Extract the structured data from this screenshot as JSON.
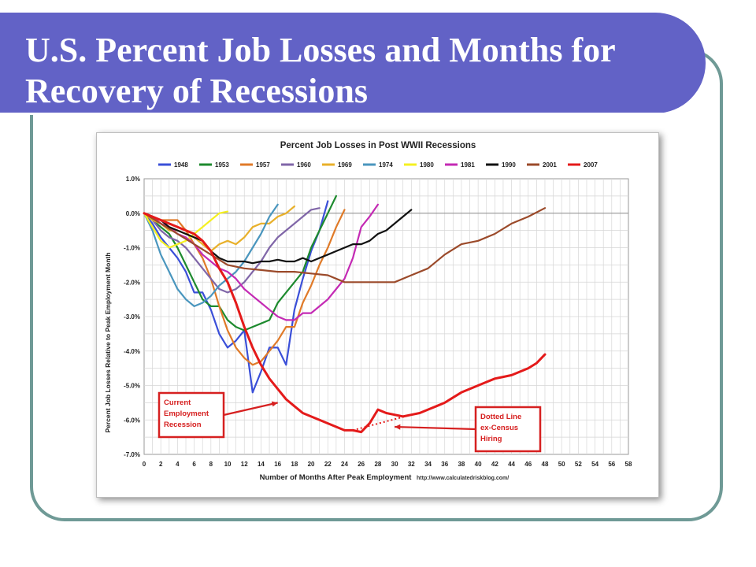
{
  "slide": {
    "title": "U.S. Percent Job Losses and Months for Recovery of Recessions"
  },
  "chart_data": {
    "type": "line",
    "title": "Percent Job Losses in Post WWII Recessions",
    "xlabel": "Number of Months After Peak Employment",
    "ylabel": "Percent Job Losses Relative to Peak Employment Month",
    "source": "http://www.calculatedriskblog.com/",
    "xlim": [
      0,
      58
    ],
    "ylim": [
      -7.0,
      1.0
    ],
    "x_ticks": [
      "0",
      "2",
      "4",
      "6",
      "8",
      "10",
      "12",
      "14",
      "16",
      "18",
      "20",
      "22",
      "24",
      "26",
      "28",
      "30",
      "32",
      "34",
      "36",
      "38",
      "40",
      "42",
      "44",
      "46",
      "48",
      "50",
      "52",
      "54",
      "56",
      "58"
    ],
    "y_ticks": [
      "1.0%",
      "0.0%",
      "-1.0%",
      "-2.0%",
      "-3.0%",
      "-4.0%",
      "-5.0%",
      "-6.0%",
      "-7.0%"
    ],
    "grid": true,
    "legend_position": "top",
    "series": [
      {
        "name": "1948",
        "color": "#3a4fd8",
        "x": [
          0,
          1,
          2,
          3,
          4,
          5,
          6,
          7,
          8,
          9,
          10,
          11,
          12,
          13,
          14,
          15,
          16,
          17,
          18,
          19,
          20,
          21,
          22
        ],
        "values": [
          0,
          -0.3,
          -0.7,
          -1.0,
          -1.3,
          -1.7,
          -2.3,
          -2.3,
          -2.8,
          -3.5,
          -3.9,
          -3.7,
          -3.4,
          -5.2,
          -4.6,
          -3.9,
          -3.9,
          -4.4,
          -2.8,
          -1.9,
          -1.1,
          -0.5,
          0.35
        ]
      },
      {
        "name": "1953",
        "color": "#1d8a2e",
        "x": [
          0,
          1,
          2,
          3,
          4,
          5,
          6,
          7,
          8,
          9,
          10,
          11,
          12,
          13,
          14,
          15,
          16,
          17,
          18,
          19,
          20,
          21,
          22,
          23
        ],
        "values": [
          0,
          -0.2,
          -0.4,
          -0.6,
          -1.0,
          -1.5,
          -2.0,
          -2.5,
          -2.7,
          -2.7,
          -3.1,
          -3.3,
          -3.4,
          -3.3,
          -3.2,
          -3.1,
          -2.6,
          -2.3,
          -2.0,
          -1.7,
          -1.0,
          -0.5,
          0.0,
          0.5
        ]
      },
      {
        "name": "1957",
        "color": "#e07a28",
        "x": [
          0,
          1,
          2,
          3,
          4,
          5,
          6,
          7,
          8,
          9,
          10,
          11,
          12,
          13,
          14,
          15,
          16,
          17,
          18,
          19,
          20,
          21,
          22,
          23,
          24
        ],
        "values": [
          0,
          -0.1,
          -0.2,
          -0.2,
          -0.2,
          -0.5,
          -0.9,
          -1.3,
          -1.9,
          -2.7,
          -3.4,
          -3.9,
          -4.2,
          -4.4,
          -4.3,
          -4.0,
          -3.7,
          -3.3,
          -3.3,
          -2.6,
          -2.1,
          -1.5,
          -1.0,
          -0.4,
          0.1
        ]
      },
      {
        "name": "1960",
        "color": "#8066a8",
        "x": [
          0,
          1,
          2,
          3,
          4,
          5,
          6,
          7,
          8,
          9,
          10,
          11,
          12,
          13,
          14,
          15,
          16,
          17,
          18,
          19,
          20,
          21
        ],
        "values": [
          0,
          -0.2,
          -0.5,
          -0.7,
          -0.8,
          -1.0,
          -1.3,
          -1.6,
          -1.9,
          -2.2,
          -2.3,
          -2.2,
          -2.0,
          -1.7,
          -1.4,
          -1.0,
          -0.7,
          -0.5,
          -0.3,
          -0.1,
          0.1,
          0.15
        ]
      },
      {
        "name": "1969",
        "color": "#e8b02a",
        "x": [
          0,
          1,
          2,
          3,
          4,
          5,
          6,
          7,
          8,
          9,
          10,
          11,
          12,
          13,
          14,
          15,
          16,
          17,
          18
        ],
        "values": [
          0,
          -0.2,
          -0.3,
          -0.5,
          -0.5,
          -0.6,
          -0.7,
          -0.9,
          -1.1,
          -0.9,
          -0.8,
          -0.9,
          -0.7,
          -0.4,
          -0.3,
          -0.3,
          -0.1,
          0.0,
          0.2
        ]
      },
      {
        "name": "1974",
        "color": "#4a96be",
        "x": [
          0,
          1,
          2,
          3,
          4,
          5,
          6,
          7,
          8,
          9,
          10,
          11,
          12,
          13,
          14,
          15,
          16
        ],
        "values": [
          0,
          -0.5,
          -1.2,
          -1.7,
          -2.2,
          -2.5,
          -2.7,
          -2.6,
          -2.4,
          -2.1,
          -1.9,
          -1.7,
          -1.4,
          -1.0,
          -0.6,
          -0.1,
          0.25
        ]
      },
      {
        "name": "1980",
        "color": "#f5f020",
        "x": [
          0,
          1,
          2,
          3,
          4,
          5,
          6,
          7,
          8,
          9,
          10
        ],
        "values": [
          0,
          -0.4,
          -0.8,
          -1.0,
          -0.9,
          -0.8,
          -0.6,
          -0.4,
          -0.2,
          0.0,
          0.05
        ]
      },
      {
        "name": "1981",
        "color": "#c42ab4",
        "x": [
          0,
          1,
          2,
          3,
          4,
          5,
          6,
          7,
          8,
          9,
          10,
          11,
          12,
          13,
          14,
          15,
          16,
          17,
          18,
          19,
          20,
          21,
          22,
          23,
          24,
          25,
          26,
          27,
          28
        ],
        "values": [
          0,
          -0.1,
          -0.3,
          -0.4,
          -0.6,
          -0.7,
          -0.9,
          -1.2,
          -1.4,
          -1.6,
          -1.7,
          -1.9,
          -2.2,
          -2.4,
          -2.6,
          -2.8,
          -3.0,
          -3.1,
          -3.1,
          -2.9,
          -2.9,
          -2.7,
          -2.5,
          -2.2,
          -1.9,
          -1.3,
          -0.4,
          -0.1,
          0.25
        ]
      },
      {
        "name": "1990",
        "color": "#111111",
        "x": [
          0,
          1,
          2,
          3,
          4,
          5,
          6,
          7,
          8,
          9,
          10,
          11,
          12,
          13,
          14,
          15,
          16,
          17,
          18,
          19,
          20,
          21,
          22,
          23,
          24,
          25,
          26,
          27,
          28,
          29,
          30,
          31,
          32
        ],
        "values": [
          0,
          -0.1,
          -0.2,
          -0.4,
          -0.5,
          -0.6,
          -0.7,
          -0.8,
          -1.1,
          -1.3,
          -1.4,
          -1.4,
          -1.4,
          -1.45,
          -1.4,
          -1.4,
          -1.35,
          -1.4,
          -1.4,
          -1.3,
          -1.4,
          -1.3,
          -1.2,
          -1.1,
          -1.0,
          -0.9,
          -0.9,
          -0.8,
          -0.6,
          -0.5,
          -0.3,
          -0.1,
          0.1
        ]
      },
      {
        "name": "2001",
        "color": "#9b4a2a",
        "x": [
          0,
          2,
          4,
          6,
          8,
          10,
          12,
          14,
          16,
          18,
          20,
          22,
          24,
          26,
          28,
          30,
          32,
          34,
          36,
          38,
          40,
          42,
          44,
          46,
          48
        ],
        "values": [
          0,
          -0.3,
          -0.6,
          -0.9,
          -1.2,
          -1.5,
          -1.6,
          -1.65,
          -1.7,
          -1.7,
          -1.75,
          -1.8,
          -2.0,
          -2.0,
          -2.0,
          -2.0,
          -1.8,
          -1.6,
          -1.2,
          -0.9,
          -0.8,
          -0.6,
          -0.3,
          -0.1,
          0.15
        ]
      },
      {
        "name": "2007",
        "color": "#e41a1a",
        "x": [
          0,
          1,
          2,
          3,
          4,
          5,
          6,
          7,
          8,
          9,
          10,
          11,
          12,
          13,
          14,
          15,
          16,
          17,
          18,
          19,
          20,
          21,
          22,
          23,
          24,
          25,
          26,
          27,
          28,
          29,
          30,
          31,
          32,
          33,
          34,
          35,
          36,
          37,
          38,
          39,
          40,
          41,
          42,
          43,
          44,
          45,
          46,
          47,
          48
        ],
        "values": [
          0,
          -0.1,
          -0.2,
          -0.3,
          -0.4,
          -0.5,
          -0.6,
          -0.8,
          -1.1,
          -1.6,
          -2.0,
          -2.6,
          -3.3,
          -3.9,
          -4.4,
          -4.8,
          -5.1,
          -5.4,
          -5.6,
          -5.8,
          -5.9,
          -6.0,
          -6.1,
          -6.2,
          -6.3,
          -6.3,
          -6.35,
          -6.1,
          -5.7,
          -5.8,
          -5.85,
          -5.9,
          -5.85,
          -5.8,
          -5.7,
          -5.6,
          -5.5,
          -5.35,
          -5.2,
          -5.1,
          -5.0,
          -4.9,
          -4.8,
          -4.75,
          -4.7,
          -4.6,
          -4.5,
          -4.35,
          -4.1
        ]
      }
    ],
    "dotted_segment": {
      "series": "2007",
      "x": [
        25,
        32
      ],
      "values": [
        -6.3,
        -5.85
      ]
    },
    "annotations": [
      {
        "id": "current",
        "text": [
          "Current",
          "Employment",
          "Recession"
        ],
        "points_to": {
          "x": 16,
          "y": -5.5
        }
      },
      {
        "id": "dotted",
        "text": [
          "Dotted Line",
          "ex-Census",
          "Hiring"
        ],
        "points_to": {
          "x": 30,
          "y": -6.2
        }
      }
    ]
  }
}
